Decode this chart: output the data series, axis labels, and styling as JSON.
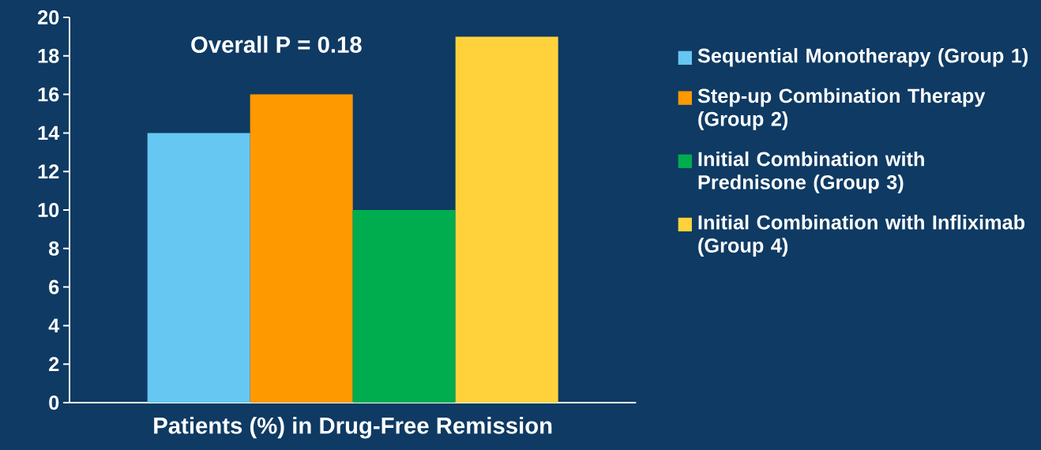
{
  "chart_data": {
    "type": "bar",
    "xlabel": "Patients (%) in Drug-Free Remission",
    "annotations": [
      "Overall P = 0.18"
    ],
    "categories": [
      null
    ],
    "series": [
      {
        "name": "Sequential Monotherapy (Group 1)",
        "color": "#66c7f2",
        "values": [
          14
        ]
      },
      {
        "name": "Step-up Combination Therapy (Group 2)",
        "color": "#ff9900",
        "values": [
          16
        ]
      },
      {
        "name": "Initial Combination with Prednisone (Group 3)",
        "color": "#00ad4e",
        "values": [
          10
        ]
      },
      {
        "name": "Initial Combination with Infliximab (Group 4)",
        "color": "#ffd23c",
        "values": [
          19
        ]
      }
    ],
    "ylim": [
      0,
      20
    ],
    "yticks": [
      0,
      2,
      4,
      6,
      8,
      10,
      12,
      14,
      16,
      18,
      20
    ],
    "grid": false,
    "legend": "right"
  }
}
